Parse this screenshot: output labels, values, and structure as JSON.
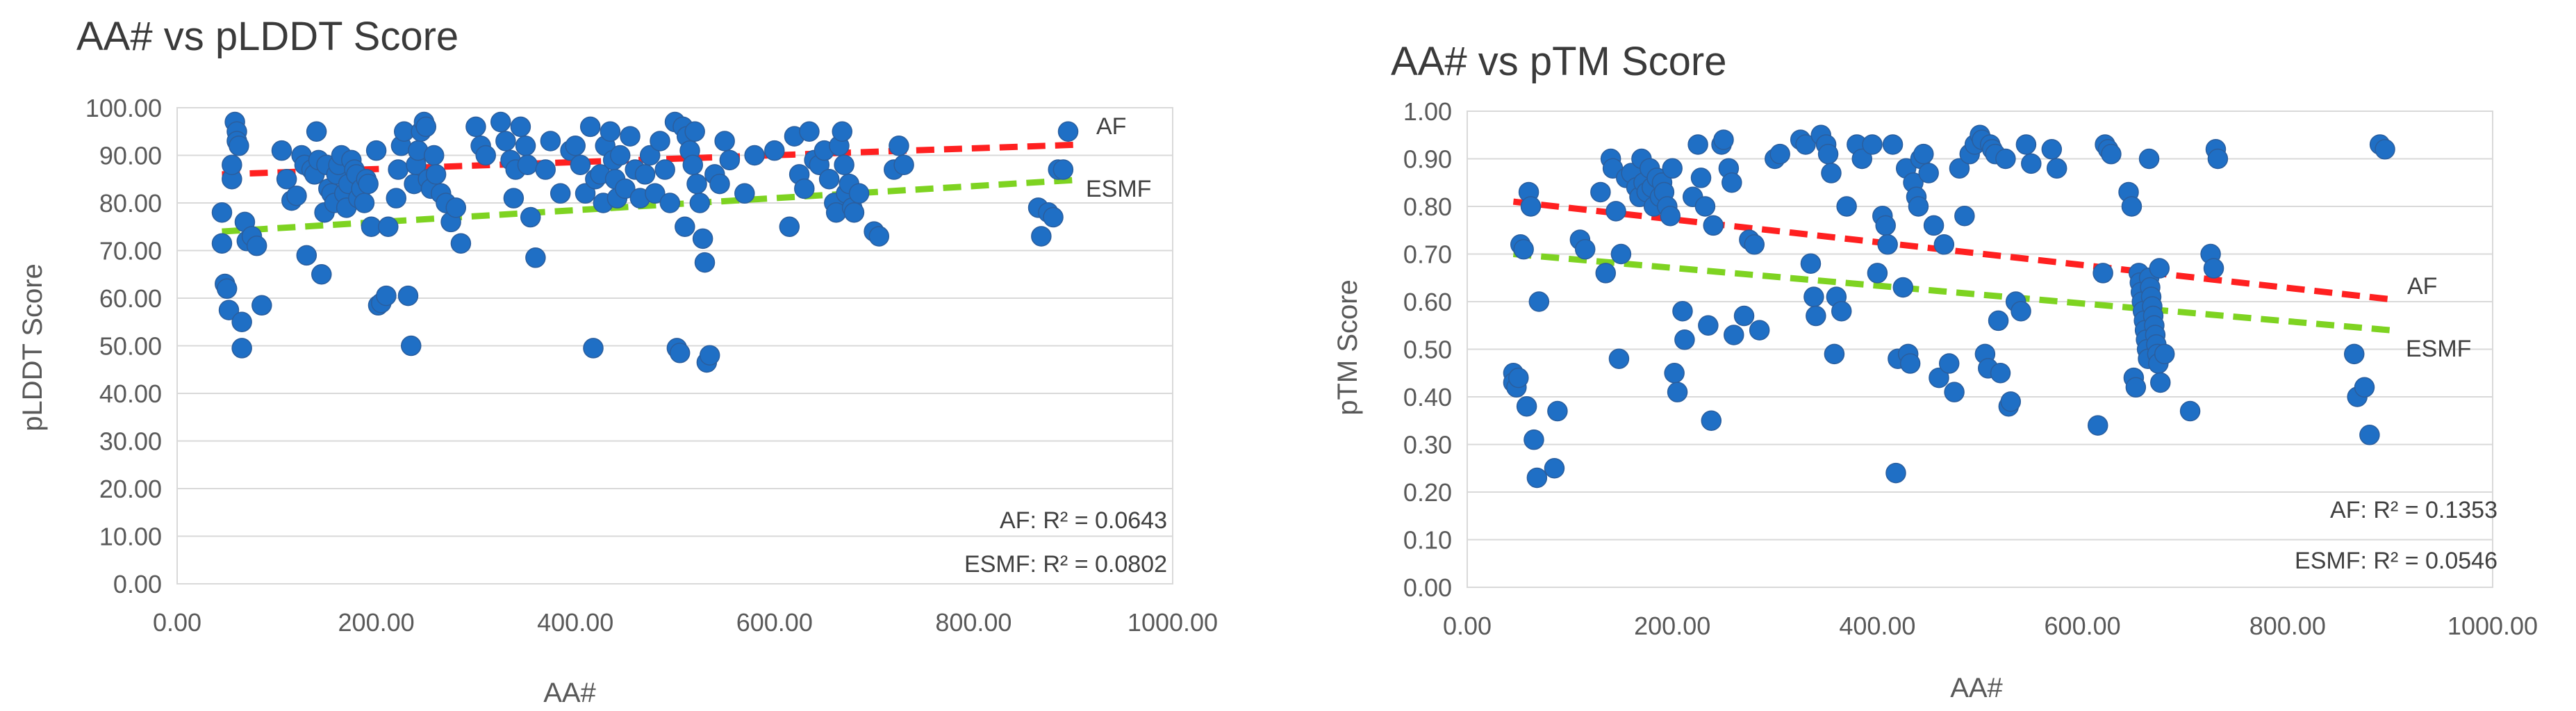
{
  "chart_data": [
    {
      "id": "plddt",
      "type": "scatter",
      "title": "AA# vs pLDDT Score",
      "xlabel": "AA#",
      "ylabel": "pLDDT Score",
      "xlim": [
        0,
        1000
      ],
      "ylim": [
        0,
        100
      ],
      "xticks": [
        0,
        200,
        400,
        600,
        800,
        1000
      ],
      "yticks": [
        0,
        10,
        20,
        30,
        40,
        50,
        60,
        70,
        80,
        90,
        100
      ],
      "xtick_labels": [
        "0.00",
        "200.00",
        "400.00",
        "600.00",
        "800.00",
        "1000.00"
      ],
      "ytick_labels": [
        "0.00",
        "10.00",
        "20.00",
        "30.00",
        "40.00",
        "50.00",
        "60.00",
        "70.00",
        "80.00",
        "90.00",
        "100.00"
      ],
      "trendlines": [
        {
          "name": "AF",
          "color": "#ff2020",
          "x": [
            45,
            900
          ],
          "y": [
            86.0,
            92.2
          ]
        },
        {
          "name": "ESMF",
          "color": "#7ed321",
          "x": [
            45,
            900
          ],
          "y": [
            74.0,
            84.8
          ]
        }
      ],
      "annotations": [
        "AF: R² = 0.0643",
        "ESMF: R² = 0.0802"
      ],
      "points": [
        [
          45,
          78
        ],
        [
          45,
          71.5
        ],
        [
          48,
          63
        ],
        [
          50,
          62
        ],
        [
          52,
          57.5
        ],
        [
          55,
          85
        ],
        [
          55,
          88
        ],
        [
          58,
          97
        ],
        [
          60,
          95
        ],
        [
          60,
          93
        ],
        [
          62,
          92
        ],
        [
          65,
          55
        ],
        [
          65,
          49.5
        ],
        [
          68,
          76
        ],
        [
          70,
          72
        ],
        [
          75,
          73
        ],
        [
          80,
          71
        ],
        [
          85,
          58.5
        ],
        [
          105,
          91
        ],
        [
          110,
          85
        ],
        [
          115,
          80.5
        ],
        [
          120,
          81.5
        ],
        [
          125,
          90
        ],
        [
          128,
          88
        ],
        [
          130,
          69
        ],
        [
          135,
          87
        ],
        [
          138,
          86
        ],
        [
          140,
          95
        ],
        [
          142,
          89
        ],
        [
          145,
          65
        ],
        [
          148,
          78
        ],
        [
          150,
          88
        ],
        [
          152,
          83
        ],
        [
          155,
          82
        ],
        [
          158,
          80
        ],
        [
          160,
          86
        ],
        [
          162,
          88
        ],
        [
          165,
          90
        ],
        [
          168,
          82
        ],
        [
          170,
          79
        ],
        [
          172,
          84
        ],
        [
          175,
          89
        ],
        [
          178,
          87
        ],
        [
          180,
          86
        ],
        [
          182,
          81
        ],
        [
          185,
          83
        ],
        [
          188,
          80
        ],
        [
          190,
          85
        ],
        [
          192,
          84
        ],
        [
          195,
          75
        ],
        [
          200,
          91
        ],
        [
          202,
          58.5
        ],
        [
          205,
          59
        ],
        [
          210,
          60.5
        ],
        [
          212,
          75
        ],
        [
          220,
          81
        ],
        [
          222,
          87
        ],
        [
          225,
          92
        ],
        [
          228,
          95
        ],
        [
          232,
          60.5
        ],
        [
          235,
          50
        ],
        [
          238,
          84
        ],
        [
          240,
          88
        ],
        [
          242,
          91
        ],
        [
          245,
          95
        ],
        [
          248,
          97
        ],
        [
          250,
          96
        ],
        [
          252,
          85
        ],
        [
          255,
          83
        ],
        [
          258,
          90
        ],
        [
          260,
          86
        ],
        [
          265,
          82
        ],
        [
          270,
          80
        ],
        [
          275,
          76
        ],
        [
          280,
          79
        ],
        [
          285,
          71.5
        ],
        [
          300,
          96
        ],
        [
          305,
          92
        ],
        [
          310,
          90
        ],
        [
          325,
          97
        ],
        [
          330,
          93
        ],
        [
          335,
          89
        ],
        [
          338,
          81
        ],
        [
          340,
          87
        ],
        [
          345,
          96
        ],
        [
          350,
          92
        ],
        [
          352,
          88
        ],
        [
          355,
          77
        ],
        [
          360,
          68.5
        ],
        [
          370,
          87
        ],
        [
          375,
          93
        ],
        [
          385,
          82
        ],
        [
          395,
          91
        ],
        [
          400,
          92
        ],
        [
          405,
          88
        ],
        [
          410,
          82
        ],
        [
          415,
          96
        ],
        [
          418,
          49.5
        ],
        [
          420,
          85
        ],
        [
          425,
          86
        ],
        [
          428,
          80
        ],
        [
          430,
          92
        ],
        [
          435,
          95
        ],
        [
          438,
          89
        ],
        [
          440,
          85
        ],
        [
          442,
          81
        ],
        [
          445,
          90
        ],
        [
          450,
          83
        ],
        [
          455,
          94
        ],
        [
          460,
          87
        ],
        [
          465,
          81
        ],
        [
          470,
          86
        ],
        [
          475,
          90
        ],
        [
          480,
          82
        ],
        [
          485,
          93
        ],
        [
          490,
          87
        ],
        [
          495,
          80
        ],
        [
          500,
          97
        ],
        [
          502,
          49.5
        ],
        [
          505,
          48.5
        ],
        [
          508,
          96
        ],
        [
          510,
          75
        ],
        [
          512,
          94
        ],
        [
          515,
          91
        ],
        [
          518,
          88
        ],
        [
          520,
          95
        ],
        [
          522,
          84
        ],
        [
          525,
          80
        ],
        [
          528,
          72.5
        ],
        [
          530,
          67.5
        ],
        [
          532,
          46.5
        ],
        [
          535,
          48
        ],
        [
          540,
          86
        ],
        [
          545,
          84
        ],
        [
          550,
          93
        ],
        [
          555,
          89
        ],
        [
          570,
          82
        ],
        [
          580,
          90
        ],
        [
          600,
          91
        ],
        [
          615,
          75
        ],
        [
          620,
          94
        ],
        [
          625,
          86
        ],
        [
          630,
          83
        ],
        [
          635,
          95
        ],
        [
          640,
          89
        ],
        [
          645,
          88
        ],
        [
          650,
          91
        ],
        [
          655,
          85
        ],
        [
          660,
          80
        ],
        [
          662,
          78
        ],
        [
          665,
          92
        ],
        [
          668,
          95
        ],
        [
          670,
          88
        ],
        [
          672,
          82
        ],
        [
          675,
          84
        ],
        [
          678,
          79
        ],
        [
          680,
          78
        ],
        [
          685,
          82
        ],
        [
          700,
          74
        ],
        [
          705,
          73
        ],
        [
          720,
          87
        ],
        [
          725,
          92
        ],
        [
          730,
          88
        ],
        [
          865,
          79
        ],
        [
          868,
          73
        ],
        [
          875,
          78
        ],
        [
          880,
          77
        ],
        [
          885,
          87
        ],
        [
          890,
          87
        ],
        [
          895,
          95
        ]
      ]
    },
    {
      "id": "ptm",
      "type": "scatter",
      "title": "AA# vs pTM Score",
      "xlabel": "AA#",
      "ylabel": "pTM Score",
      "xlim": [
        0,
        1000
      ],
      "ylim": [
        0,
        1
      ],
      "xticks": [
        0,
        200,
        400,
        600,
        800,
        1000
      ],
      "yticks": [
        0,
        0.1,
        0.2,
        0.3,
        0.4,
        0.5,
        0.6,
        0.7,
        0.8,
        0.9,
        1.0
      ],
      "xtick_labels": [
        "0.00",
        "200.00",
        "400.00",
        "600.00",
        "800.00",
        "1000.00"
      ],
      "ytick_labels": [
        "0.00",
        "0.10",
        "0.20",
        "0.30",
        "0.40",
        "0.50",
        "0.60",
        "0.70",
        "0.80",
        "0.90",
        "1.00"
      ],
      "trendlines": [
        {
          "name": "AF",
          "color": "#ff2020",
          "x": [
            45,
            900
          ],
          "y": [
            0.81,
            0.605
          ]
        },
        {
          "name": "ESMF",
          "color": "#7ed321",
          "x": [
            45,
            900
          ],
          "y": [
            0.7,
            0.54
          ]
        }
      ],
      "annotations": [
        "AF: R² = 0.1353",
        "ESMF: R² = 0.0546"
      ],
      "points": [
        [
          45,
          0.45
        ],
        [
          45,
          0.43
        ],
        [
          48,
          0.42
        ],
        [
          50,
          0.44
        ],
        [
          52,
          0.72
        ],
        [
          55,
          0.71
        ],
        [
          58,
          0.38
        ],
        [
          60,
          0.83
        ],
        [
          62,
          0.8
        ],
        [
          65,
          0.31
        ],
        [
          68,
          0.23
        ],
        [
          70,
          0.6
        ],
        [
          85,
          0.25
        ],
        [
          88,
          0.37
        ],
        [
          110,
          0.73
        ],
        [
          115,
          0.71
        ],
        [
          130,
          0.83
        ],
        [
          135,
          0.66
        ],
        [
          140,
          0.9
        ],
        [
          142,
          0.88
        ],
        [
          145,
          0.79
        ],
        [
          148,
          0.48
        ],
        [
          150,
          0.7
        ],
        [
          155,
          0.86
        ],
        [
          160,
          0.87
        ],
        [
          165,
          0.84
        ],
        [
          168,
          0.82
        ],
        [
          170,
          0.9
        ],
        [
          172,
          0.85
        ],
        [
          175,
          0.83
        ],
        [
          178,
          0.88
        ],
        [
          180,
          0.84
        ],
        [
          182,
          0.8
        ],
        [
          185,
          0.86
        ],
        [
          188,
          0.82
        ],
        [
          190,
          0.85
        ],
        [
          192,
          0.83
        ],
        [
          195,
          0.8
        ],
        [
          198,
          0.78
        ],
        [
          200,
          0.88
        ],
        [
          202,
          0.45
        ],
        [
          205,
          0.41
        ],
        [
          210,
          0.58
        ],
        [
          212,
          0.52
        ],
        [
          220,
          0.82
        ],
        [
          225,
          0.93
        ],
        [
          228,
          0.86
        ],
        [
          232,
          0.8
        ],
        [
          235,
          0.55
        ],
        [
          238,
          0.35
        ],
        [
          240,
          0.76
        ],
        [
          248,
          0.93
        ],
        [
          250,
          0.94
        ],
        [
          255,
          0.88
        ],
        [
          258,
          0.85
        ],
        [
          260,
          0.53
        ],
        [
          270,
          0.57
        ],
        [
          275,
          0.73
        ],
        [
          280,
          0.72
        ],
        [
          285,
          0.54
        ],
        [
          300,
          0.9
        ],
        [
          305,
          0.91
        ],
        [
          325,
          0.94
        ],
        [
          330,
          0.93
        ],
        [
          335,
          0.68
        ],
        [
          338,
          0.61
        ],
        [
          340,
          0.57
        ],
        [
          345,
          0.95
        ],
        [
          350,
          0.93
        ],
        [
          352,
          0.91
        ],
        [
          355,
          0.87
        ],
        [
          358,
          0.49
        ],
        [
          360,
          0.61
        ],
        [
          365,
          0.58
        ],
        [
          370,
          0.8
        ],
        [
          380,
          0.93
        ],
        [
          385,
          0.9
        ],
        [
          395,
          0.93
        ],
        [
          400,
          0.66
        ],
        [
          405,
          0.78
        ],
        [
          408,
          0.76
        ],
        [
          410,
          0.72
        ],
        [
          415,
          0.93
        ],
        [
          418,
          0.24
        ],
        [
          420,
          0.48
        ],
        [
          425,
          0.63
        ],
        [
          428,
          0.88
        ],
        [
          430,
          0.49
        ],
        [
          432,
          0.47
        ],
        [
          435,
          0.85
        ],
        [
          438,
          0.82
        ],
        [
          440,
          0.8
        ],
        [
          442,
          0.9
        ],
        [
          445,
          0.91
        ],
        [
          450,
          0.87
        ],
        [
          455,
          0.76
        ],
        [
          460,
          0.44
        ],
        [
          465,
          0.72
        ],
        [
          470,
          0.47
        ],
        [
          475,
          0.41
        ],
        [
          480,
          0.88
        ],
        [
          485,
          0.78
        ],
        [
          490,
          0.91
        ],
        [
          495,
          0.93
        ],
        [
          500,
          0.95
        ],
        [
          502,
          0.94
        ],
        [
          505,
          0.49
        ],
        [
          508,
          0.46
        ],
        [
          510,
          0.93
        ],
        [
          512,
          0.92
        ],
        [
          515,
          0.91
        ],
        [
          518,
          0.56
        ],
        [
          520,
          0.45
        ],
        [
          525,
          0.9
        ],
        [
          528,
          0.38
        ],
        [
          530,
          0.39
        ],
        [
          535,
          0.6
        ],
        [
          540,
          0.58
        ],
        [
          545,
          0.93
        ],
        [
          550,
          0.89
        ],
        [
          570,
          0.92
        ],
        [
          575,
          0.88
        ],
        [
          615,
          0.34
        ],
        [
          620,
          0.66
        ],
        [
          622,
          0.93
        ],
        [
          625,
          0.92
        ],
        [
          628,
          0.91
        ],
        [
          645,
          0.83
        ],
        [
          648,
          0.8
        ],
        [
          650,
          0.44
        ],
        [
          652,
          0.42
        ],
        [
          655,
          0.66
        ],
        [
          656,
          0.64
        ],
        [
          657,
          0.62
        ],
        [
          658,
          0.6
        ],
        [
          659,
          0.58
        ],
        [
          660,
          0.56
        ],
        [
          661,
          0.54
        ],
        [
          662,
          0.52
        ],
        [
          663,
          0.5
        ],
        [
          664,
          0.48
        ],
        [
          665,
          0.65
        ],
        [
          666,
          0.63
        ],
        [
          667,
          0.61
        ],
        [
          668,
          0.59
        ],
        [
          669,
          0.57
        ],
        [
          670,
          0.55
        ],
        [
          671,
          0.53
        ],
        [
          672,
          0.51
        ],
        [
          673,
          0.49
        ],
        [
          674,
          0.47
        ],
        [
          675,
          0.67
        ],
        [
          676,
          0.43
        ],
        [
          665,
          0.9
        ],
        [
          680,
          0.49
        ],
        [
          705,
          0.37
        ],
        [
          725,
          0.7
        ],
        [
          728,
          0.67
        ],
        [
          730,
          0.92
        ],
        [
          732,
          0.9
        ],
        [
          865,
          0.49
        ],
        [
          868,
          0.4
        ],
        [
          875,
          0.42
        ],
        [
          880,
          0.32
        ],
        [
          890,
          0.93
        ],
        [
          895,
          0.92
        ]
      ]
    }
  ]
}
